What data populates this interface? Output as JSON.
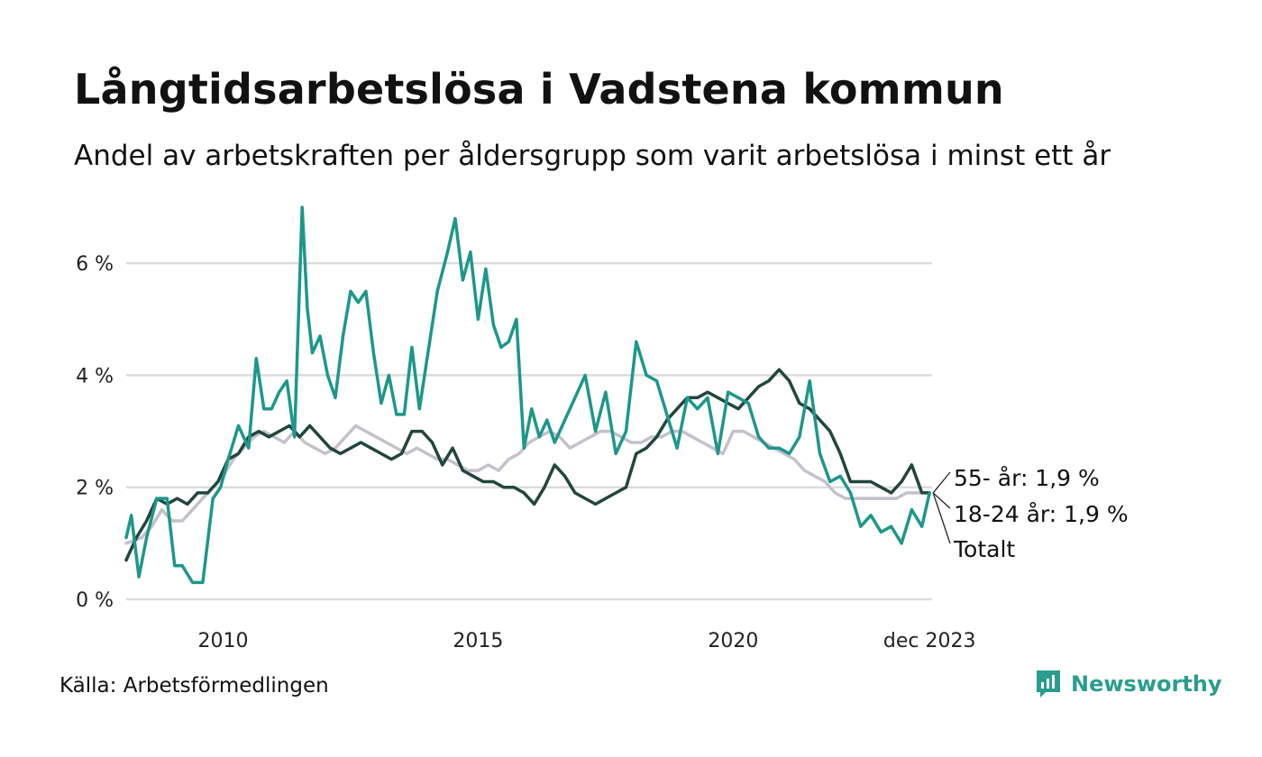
{
  "title": "Långtidsarbetslösa i Vadstena kommun",
  "subtitle": "Andel av arbetskraften per åldersgrupp som varit arbetslösa i minst ett år",
  "source": "Källa: Arbetsförmedlingen",
  "brand": {
    "name": "Newsworthy",
    "logo_icon": "bar-chart-icon",
    "color": "#2a9d8f"
  },
  "chart_data": {
    "type": "line",
    "ylim": [
      0,
      7
    ],
    "xlim": [
      2008.1,
      2023.9
    ],
    "yticks": [
      0,
      2,
      4,
      6
    ],
    "ytick_labels": [
      "0 %",
      "2 %",
      "4 %",
      "6 %"
    ],
    "xticks": [
      2010,
      2015,
      2020,
      2023.85
    ],
    "xtick_labels": [
      "2010",
      "2015",
      "2020",
      "dec 2023"
    ],
    "grid": true,
    "series": [
      {
        "name": "Totalt",
        "color": "#c4c0cc",
        "end_label": "Totalt",
        "x": [
          2008.1,
          2008.4,
          2008.6,
          2008.8,
          2009.0,
          2009.2,
          2009.4,
          2009.6,
          2009.8,
          2010.0,
          2010.2,
          2010.4,
          2010.6,
          2010.8,
          2011.0,
          2011.2,
          2011.4,
          2011.6,
          2011.8,
          2012.0,
          2012.2,
          2012.4,
          2012.6,
          2012.8,
          2013.0,
          2013.2,
          2013.4,
          2013.6,
          2013.8,
          2014.0,
          2014.2,
          2014.4,
          2014.6,
          2014.8,
          2015.0,
          2015.2,
          2015.4,
          2015.6,
          2015.8,
          2016.0,
          2016.2,
          2016.4,
          2016.6,
          2016.8,
          2017.0,
          2017.2,
          2017.4,
          2017.6,
          2017.8,
          2018.0,
          2018.2,
          2018.4,
          2018.6,
          2018.8,
          2019.0,
          2019.2,
          2019.4,
          2019.6,
          2019.8,
          2020.0,
          2020.2,
          2020.4,
          2020.6,
          2020.8,
          2021.0,
          2021.2,
          2021.4,
          2021.6,
          2021.8,
          2022.0,
          2022.2,
          2022.4,
          2022.6,
          2022.8,
          2023.0,
          2023.2,
          2023.4,
          2023.6,
          2023.85
        ],
        "values": [
          1.0,
          1.1,
          1.3,
          1.6,
          1.4,
          1.4,
          1.6,
          1.8,
          2.0,
          2.2,
          2.5,
          2.7,
          2.9,
          3.0,
          2.9,
          2.8,
          3.0,
          2.8,
          2.7,
          2.6,
          2.7,
          2.9,
          3.1,
          3.0,
          2.9,
          2.8,
          2.7,
          2.6,
          2.7,
          2.6,
          2.5,
          2.5,
          2.4,
          2.3,
          2.3,
          2.4,
          2.3,
          2.5,
          2.6,
          2.8,
          2.9,
          3.0,
          2.9,
          2.7,
          2.8,
          2.9,
          3.0,
          3.0,
          2.9,
          2.8,
          2.8,
          2.9,
          2.9,
          3.0,
          3.0,
          2.9,
          2.8,
          2.7,
          2.6,
          3.0,
          3.0,
          2.9,
          2.8,
          2.7,
          2.6,
          2.5,
          2.3,
          2.2,
          2.1,
          1.9,
          1.8,
          1.8,
          1.8,
          1.8,
          1.8,
          1.8,
          1.9,
          1.9,
          1.9
        ]
      },
      {
        "name": "55- år",
        "color": "#21463e",
        "end_label": "55- år: 1,9 %",
        "x": [
          2008.1,
          2008.3,
          2008.5,
          2008.7,
          2008.9,
          2009.1,
          2009.3,
          2009.5,
          2009.7,
          2009.9,
          2010.1,
          2010.3,
          2010.5,
          2010.7,
          2010.9,
          2011.1,
          2011.3,
          2011.5,
          2011.7,
          2011.9,
          2012.1,
          2012.3,
          2012.5,
          2012.7,
          2012.9,
          2013.1,
          2013.3,
          2013.5,
          2013.7,
          2013.9,
          2014.1,
          2014.3,
          2014.5,
          2014.7,
          2014.9,
          2015.1,
          2015.3,
          2015.5,
          2015.7,
          2015.9,
          2016.1,
          2016.3,
          2016.5,
          2016.7,
          2016.9,
          2017.1,
          2017.3,
          2017.5,
          2017.7,
          2017.9,
          2018.1,
          2018.3,
          2018.5,
          2018.7,
          2018.9,
          2019.1,
          2019.3,
          2019.5,
          2019.7,
          2019.9,
          2020.1,
          2020.3,
          2020.5,
          2020.7,
          2020.9,
          2021.1,
          2021.3,
          2021.5,
          2021.7,
          2021.9,
          2022.1,
          2022.3,
          2022.5,
          2022.7,
          2022.9,
          2023.1,
          2023.3,
          2023.5,
          2023.7,
          2023.85
        ],
        "values": [
          0.7,
          1.1,
          1.4,
          1.8,
          1.7,
          1.8,
          1.7,
          1.9,
          1.9,
          2.1,
          2.5,
          2.6,
          2.9,
          3.0,
          2.9,
          3.0,
          3.1,
          2.9,
          3.1,
          2.9,
          2.7,
          2.6,
          2.7,
          2.8,
          2.7,
          2.6,
          2.5,
          2.6,
          3.0,
          3.0,
          2.8,
          2.4,
          2.7,
          2.3,
          2.2,
          2.1,
          2.1,
          2.0,
          2.0,
          1.9,
          1.7,
          2.0,
          2.4,
          2.2,
          1.9,
          1.8,
          1.7,
          1.8,
          1.9,
          2.0,
          2.6,
          2.7,
          2.9,
          3.2,
          3.4,
          3.6,
          3.6,
          3.7,
          3.6,
          3.5,
          3.4,
          3.6,
          3.8,
          3.9,
          4.1,
          3.9,
          3.5,
          3.4,
          3.2,
          3.0,
          2.6,
          2.1,
          2.1,
          2.1,
          2.0,
          1.9,
          2.1,
          2.4,
          1.9,
          1.9
        ]
      },
      {
        "name": "18-24 år",
        "color": "#1d978a",
        "end_label": "18-24 år: 1,9 %",
        "x": [
          2008.1,
          2008.2,
          2008.35,
          2008.5,
          2008.7,
          2008.9,
          2009.05,
          2009.2,
          2009.4,
          2009.6,
          2009.8,
          2009.95,
          2010.1,
          2010.3,
          2010.5,
          2010.65,
          2010.8,
          2010.95,
          2011.1,
          2011.25,
          2011.4,
          2011.55,
          2011.65,
          2011.75,
          2011.9,
          2012.05,
          2012.2,
          2012.35,
          2012.5,
          2012.65,
          2012.8,
          2012.95,
          2013.1,
          2013.25,
          2013.4,
          2013.55,
          2013.7,
          2013.85,
          2014.0,
          2014.2,
          2014.4,
          2014.55,
          2014.7,
          2014.85,
          2015.0,
          2015.15,
          2015.3,
          2015.45,
          2015.6,
          2015.75,
          2015.9,
          2016.05,
          2016.2,
          2016.35,
          2016.5,
          2016.7,
          2016.9,
          2017.1,
          2017.3,
          2017.5,
          2017.7,
          2017.9,
          2018.1,
          2018.3,
          2018.5,
          2018.7,
          2018.9,
          2019.1,
          2019.3,
          2019.5,
          2019.7,
          2019.9,
          2020.1,
          2020.3,
          2020.5,
          2020.7,
          2020.9,
          2021.1,
          2021.3,
          2021.5,
          2021.7,
          2021.9,
          2022.1,
          2022.3,
          2022.5,
          2022.7,
          2022.9,
          2023.1,
          2023.3,
          2023.5,
          2023.7,
          2023.85
        ],
        "values": [
          1.1,
          1.5,
          0.4,
          1.1,
          1.8,
          1.8,
          0.6,
          0.6,
          0.3,
          0.3,
          1.8,
          2.0,
          2.5,
          3.1,
          2.7,
          4.3,
          3.4,
          3.4,
          3.7,
          3.9,
          2.9,
          7.0,
          5.2,
          4.4,
          4.7,
          4.0,
          3.6,
          4.7,
          5.5,
          5.3,
          5.5,
          4.4,
          3.5,
          4.0,
          3.3,
          3.3,
          4.5,
          3.4,
          4.3,
          5.5,
          6.2,
          6.8,
          5.7,
          6.2,
          5.0,
          5.9,
          4.9,
          4.5,
          4.6,
          5.0,
          2.7,
          3.4,
          2.9,
          3.2,
          2.8,
          3.2,
          3.6,
          4.0,
          3.0,
          3.7,
          2.6,
          3.0,
          4.6,
          4.0,
          3.9,
          3.3,
          2.7,
          3.6,
          3.4,
          3.6,
          2.6,
          3.7,
          3.6,
          3.5,
          2.9,
          2.7,
          2.7,
          2.6,
          2.9,
          3.9,
          2.6,
          2.1,
          2.2,
          1.9,
          1.3,
          1.5,
          1.2,
          1.3,
          1.0,
          1.6,
          1.3,
          1.9
        ]
      }
    ]
  }
}
